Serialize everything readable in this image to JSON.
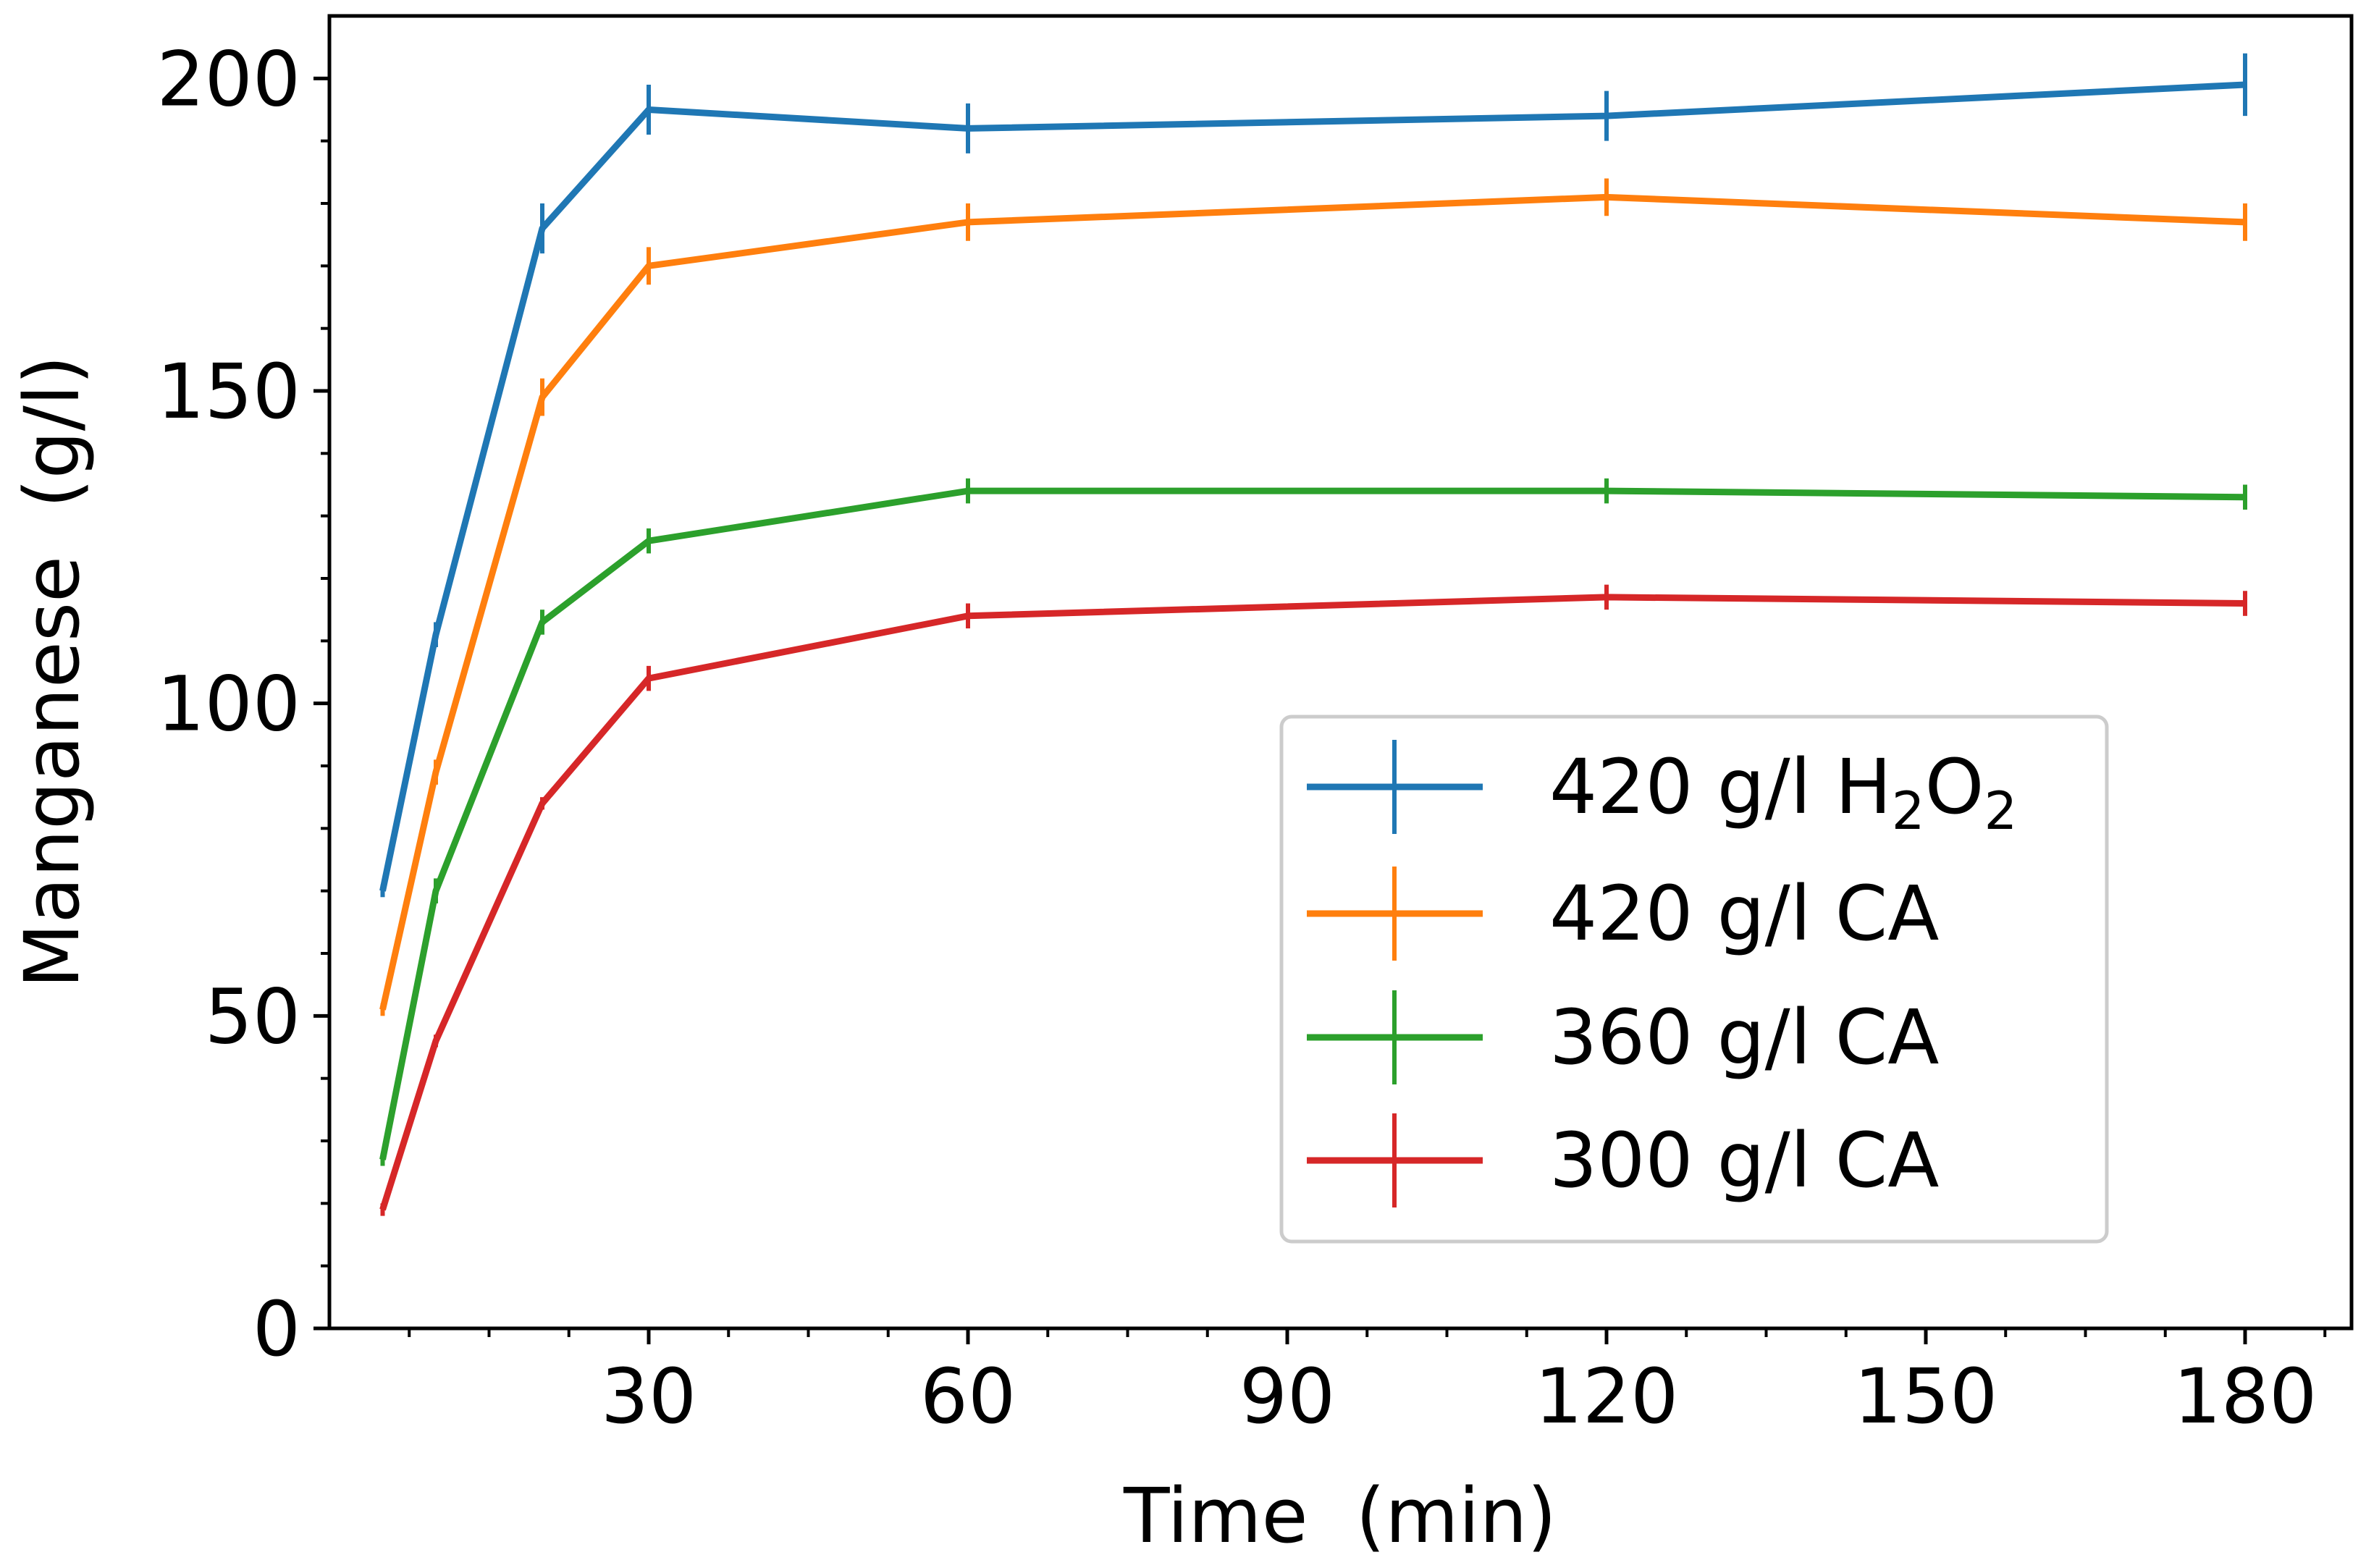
{
  "chart_data": {
    "type": "line",
    "xlabel": "Time  (min)",
    "ylabel": "Manganese  (g/l)",
    "xlim": [
      0,
      190
    ],
    "ylim": [
      0,
      210
    ],
    "xticks": [
      30,
      60,
      90,
      120,
      150,
      180
    ],
    "yticks": [
      0,
      50,
      100,
      150,
      200
    ],
    "x_minor_step": 7.5,
    "y_minor_step": 10,
    "x": [
      5,
      10,
      20,
      30,
      60,
      120,
      180
    ],
    "legend_position": "center-right",
    "series": [
      {
        "name": "420 g/l H2O2",
        "label_main": "420 g/l H",
        "label_sub1": "2",
        "label_mid": "O",
        "label_sub2": "2",
        "color": "#1f77b4",
        "values": [
          70,
          111,
          176,
          195,
          192,
          194,
          199
        ],
        "errors": [
          1,
          2,
          4,
          4,
          4,
          4,
          5
        ]
      },
      {
        "name": "420 g/l CA",
        "label_main": "420 g/l CA",
        "color": "#ff7f0e",
        "values": [
          51,
          89,
          149,
          170,
          177,
          181,
          177
        ],
        "errors": [
          1,
          2,
          3,
          3,
          3,
          3,
          3
        ]
      },
      {
        "name": "360 g/l CA",
        "label_main": "360 g/l CA",
        "color": "#2ca02c",
        "values": [
          27,
          70,
          113,
          126,
          134,
          134,
          133
        ],
        "errors": [
          1,
          2,
          2,
          2,
          2,
          2,
          2
        ]
      },
      {
        "name": "300 g/l CA",
        "label_main": "300 g/l CA",
        "color": "#d62728",
        "values": [
          19,
          46,
          84,
          104,
          114,
          117,
          116
        ],
        "errors": [
          1,
          1,
          1,
          2,
          2,
          2,
          2
        ]
      }
    ]
  }
}
